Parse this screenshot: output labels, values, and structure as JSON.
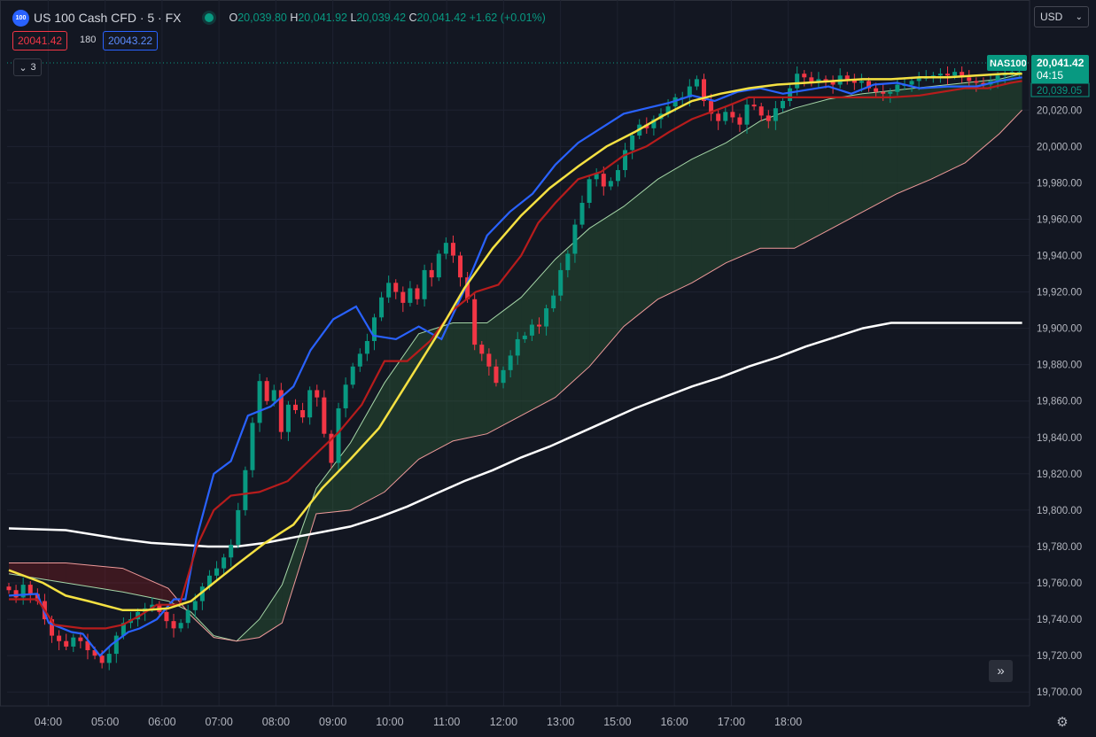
{
  "header": {
    "logo_text": "100",
    "symbol": "US 100 Cash CFD · 5 · FX",
    "o_label": "O",
    "o_value": "20,039.80",
    "h_label": "H",
    "h_value": "20,041.92",
    "l_label": "L",
    "l_value": "20,039.42",
    "c_label": "C",
    "c_value": "20,041.42",
    "change": "+1.62 (+0.01%)"
  },
  "trade": {
    "bid": "20041.42",
    "spread": "180",
    "ask": "20043.22"
  },
  "indicators_collapsed_count": "3",
  "currency": "USD",
  "price_tag": {
    "symbol": "NAS100",
    "price": "20,041.42",
    "countdown": "04:15",
    "secondary": "20,039.05"
  },
  "colors": {
    "background": "#131722",
    "up": "#089981",
    "down": "#f23645",
    "tenkan": "#2962ff",
    "kijun": "#b71c1c",
    "ema_fast": "#f5e142",
    "ema_slow": "#ffffff"
  },
  "chart_data": {
    "type": "line",
    "title": "",
    "y_ticks": [
      "20,020.00",
      "20,000.00",
      "19,980.00",
      "19,960.00",
      "19,940.00",
      "19,920.00",
      "19,900.00",
      "19,880.00",
      "19,860.00",
      "19,840.00",
      "19,820.00",
      "19,800.00",
      "19,780.00",
      "19,760.00",
      "19,740.00",
      "19,720.00",
      "19,700.00"
    ],
    "x_ticks": [
      "04:00",
      "05:00",
      "06:00",
      "07:00",
      "08:00",
      "09:00",
      "10:00",
      "11:00",
      "12:00",
      "13:00",
      "15:00",
      "16:00",
      "17:00",
      "18:00"
    ],
    "ylim": [
      19690,
      20045
    ],
    "x_axis_unit": "hours since 03:40 (bars)",
    "candles_close": [
      19756,
      19752,
      19759,
      19754,
      19750,
      19740,
      19731,
      19728,
      19725,
      19730,
      19728,
      19723,
      19720,
      19716,
      19721,
      19731,
      19738,
      19740,
      19744,
      19746,
      19748,
      19744,
      19739,
      19735,
      19738,
      19745,
      19750,
      19758,
      19764,
      19768,
      19774,
      19781,
      19800,
      19822,
      19848,
      19871,
      19860,
      19866,
      19843,
      19858,
      19855,
      19851,
      19866,
      19862,
      19842,
      19826,
      19856,
      19869,
      19879,
      19886,
      19893,
      19906,
      19917,
      19925,
      19920,
      19914,
      19922,
      19916,
      19932,
      19928,
      19941,
      19947,
      19940,
      19928,
      19916,
      19891,
      19886,
      19879,
      19870,
      19877,
      19885,
      19894,
      19896,
      19902,
      19901,
      19911,
      19918,
      19932,
      19941,
      19957,
      19969,
      19982,
      19985,
      19978,
      19981,
      19987,
      19998,
      20006,
      20012,
      20010,
      20015,
      20018,
      20022,
      20027,
      20027,
      20033,
      20037,
      20025,
      20018,
      20014,
      20019,
      20016,
      20012,
      20023,
      20022,
      20017,
      20014,
      20021,
      20025,
      20032,
      20040,
      20038,
      20035,
      20037,
      20036,
      20034,
      20039,
      20037,
      20035,
      20036,
      20032,
      20030,
      20029,
      20030,
      20034,
      20034,
      20036,
      20038,
      20038,
      20039,
      20040,
      20039,
      20041,
      20038,
      20036,
      20035,
      20034,
      20036,
      20039,
      20040,
      20041,
      20041
    ],
    "series": [
      {
        "name": "",
        "color": "#2962ff",
        "x": [
          0,
          0.5,
          0.7,
          1.1,
          1.3,
          1.6,
          1.8,
          2.1,
          2.3,
          2.6,
          2.9,
          3.1,
          3.3,
          3.6,
          3.9,
          4.2,
          4.6,
          5.0,
          5.3,
          5.7,
          6.1,
          6.4,
          6.8,
          7.2,
          7.6,
          8.0,
          8.4,
          8.8,
          9.2,
          9.6,
          10.0,
          10.4,
          10.8,
          11.2,
          11.6,
          12.0,
          12.4,
          12.8,
          13.2,
          13.6,
          14.0,
          14.4,
          14.8,
          15.2,
          15.6,
          16.0,
          16.5,
          17.0,
          17.4,
          17.8
        ],
        "y": [
          19753,
          19754,
          19738,
          19733,
          19732,
          19720,
          19726,
          19733,
          19735,
          19740,
          19751,
          19751,
          19785,
          19820,
          19827,
          19852,
          19857,
          19868,
          19888,
          19905,
          19912,
          19896,
          19894,
          19901,
          19894,
          19921,
          19951,
          19964,
          19974,
          19990,
          20002,
          20010,
          20018,
          20021,
          20024,
          20028,
          20025,
          20030,
          20032,
          20029,
          20031,
          20033,
          20029,
          20034,
          20035,
          20032,
          20033,
          20033,
          20036,
          20038
        ]
      },
      {
        "name": "",
        "color": "#b71c1c",
        "x": [
          0,
          0.5,
          0.8,
          1.3,
          1.7,
          2.0,
          2.3,
          2.6,
          3.0,
          3.3,
          3.6,
          3.9,
          4.4,
          4.9,
          5.3,
          5.8,
          6.2,
          6.6,
          7.0,
          7.4,
          7.8,
          8.2,
          8.6,
          9.0,
          9.3,
          9.6,
          10.0,
          10.4,
          10.8,
          11.2,
          11.6,
          12.0,
          12.6,
          13.0,
          13.4,
          13.8,
          14.2,
          14.6,
          15.0,
          15.5,
          16.0,
          16.4,
          16.8,
          17.2,
          17.6,
          17.8
        ],
        "y": [
          19751,
          19751,
          19737,
          19735,
          19735,
          19737,
          19742,
          19748,
          19748,
          19780,
          19800,
          19808,
          19810,
          19816,
          19828,
          19843,
          19858,
          19882,
          19882,
          19893,
          19910,
          19920,
          19924,
          19940,
          19958,
          19969,
          19982,
          19986,
          19995,
          20000,
          20008,
          20015,
          20022,
          20027,
          20027,
          20027,
          20027,
          20027,
          20027,
          20027,
          20028,
          20030,
          20032,
          20032,
          20035,
          20036
        ]
      },
      {
        "name": "",
        "color": "#f5e142",
        "x": [
          0,
          0.6,
          1.0,
          1.4,
          2.0,
          2.4,
          2.8,
          3.2,
          3.6,
          4.0,
          4.5,
          5.0,
          5.5,
          6.0,
          6.5,
          7.0,
          7.5,
          8.0,
          8.5,
          9.0,
          9.5,
          10.0,
          10.5,
          11.0,
          11.5,
          12.0,
          12.5,
          13.0,
          13.5,
          14.0,
          14.5,
          15.0,
          15.5,
          16.0,
          16.5,
          17.0,
          17.5,
          17.8
        ],
        "y": [
          19767,
          19760,
          19753,
          19750,
          19745,
          19745,
          19746,
          19750,
          19760,
          19770,
          19782,
          19792,
          19812,
          19828,
          19845,
          19870,
          19895,
          19922,
          19944,
          19962,
          19977,
          19989,
          20000,
          20008,
          20017,
          20025,
          20029,
          20032,
          20034,
          20035,
          20036,
          20037,
          20037,
          20038,
          20038,
          20039,
          20040,
          20040
        ]
      },
      {
        "name": "",
        "color": "#ffffff",
        "x": [
          0,
          1.0,
          2.0,
          2.5,
          3.0,
          3.5,
          4.0,
          4.5,
          5.0,
          5.5,
          6.0,
          6.5,
          7.0,
          7.5,
          8.0,
          8.5,
          9.0,
          9.5,
          10.0,
          10.5,
          11.0,
          11.5,
          12.0,
          12.5,
          13.0,
          13.5,
          14.0,
          14.5,
          15.0,
          15.5,
          16.0,
          16.5,
          17.0,
          17.5,
          17.8
        ],
        "y": [
          19790,
          19789,
          19784,
          19782,
          19781,
          19780,
          19780,
          19782,
          19785,
          19788,
          19791,
          19796,
          19802,
          19809,
          19816,
          19822,
          19829,
          19835,
          19842,
          19849,
          19856,
          19862,
          19868,
          19873,
          19879,
          19884,
          19890,
          19895,
          19900,
          19903,
          19903,
          19903,
          19903,
          19903,
          19903
        ]
      }
    ],
    "cloud": {
      "x": [
        0,
        1,
        2,
        2.8,
        3.2,
        3.6,
        4.0,
        4.4,
        4.8,
        5.4,
        6.0,
        6.6,
        7.2,
        7.8,
        8.4,
        9.0,
        9.6,
        10.2,
        10.8,
        11.4,
        12.0,
        12.6,
        13.2,
        13.8,
        14.4,
        15.0,
        15.6,
        16.2,
        16.8,
        17.4,
        17.8
      ],
      "span_a": [
        19765,
        19760,
        19755,
        19750,
        19744,
        19731,
        19728,
        19740,
        19759,
        19812,
        19837,
        19870,
        19897,
        19903,
        19903,
        19917,
        19938,
        19955,
        19967,
        19982,
        19993,
        20002,
        20014,
        20021,
        20026,
        20029,
        20031,
        20033,
        20035,
        20037,
        20040
      ],
      "span_b": [
        19771,
        19771,
        19768,
        19757,
        19742,
        19730,
        19728,
        19730,
        19738,
        19798,
        19800,
        19810,
        19828,
        19838,
        19842,
        19852,
        19862,
        19879,
        19901,
        19916,
        19925,
        19936,
        19944,
        19944,
        19954,
        19964,
        19974,
        19982,
        19991,
        20007,
        20020
      ]
    }
  }
}
